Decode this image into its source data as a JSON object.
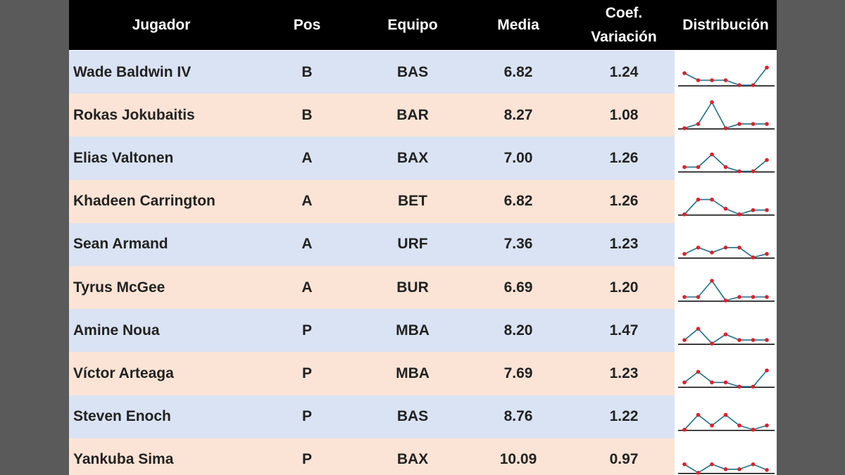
{
  "table": {
    "columns": [
      "Jugador",
      "Pos",
      "Equipo",
      "Media",
      "Coef. Variación",
      "Distribución"
    ],
    "rows": [
      [
        "Wade Baldwin IV",
        "B",
        "BAS",
        "6.82",
        "1.24"
      ],
      [
        "Rokas Jokubaitis",
        "B",
        "BAR",
        "8.27",
        "1.08"
      ],
      [
        "Elias Valtonen",
        "A",
        "BAX",
        "7.00",
        "1.26"
      ],
      [
        "Khadeen Carrington",
        "A",
        "BET",
        "6.82",
        "1.26"
      ],
      [
        "Sean Armand",
        "A",
        "URF",
        "7.36",
        "1.23"
      ],
      [
        "Tyrus McGee",
        "A",
        "BUR",
        "6.69",
        "1.20"
      ],
      [
        "Amine Noua",
        "P",
        "MBA",
        "8.20",
        "1.47"
      ],
      [
        "Víctor Arteaga",
        "P",
        "MBA",
        "7.69",
        "1.23"
      ],
      [
        "Steven Enoch",
        "P",
        "BAS",
        "8.76",
        "1.22"
      ],
      [
        "Yankuba Sima",
        "P",
        "BAX",
        "10.09",
        "0.97"
      ]
    ],
    "sparklines": [
      [
        17,
        7,
        7,
        7,
        0,
        0,
        25
      ],
      [
        0,
        6,
        37,
        0,
        6,
        6,
        6
      ],
      [
        6,
        6,
        24,
        6,
        0,
        0,
        16
      ],
      [
        0,
        21,
        21,
        8,
        0,
        6,
        6
      ],
      [
        5,
        14,
        7,
        14,
        14,
        0,
        5
      ],
      [
        5,
        5,
        28,
        0,
        5,
        5,
        5
      ],
      [
        5,
        21,
        0,
        13,
        5,
        5,
        5
      ],
      [
        6,
        21,
        6,
        6,
        0,
        0,
        23
      ],
      [
        0,
        21,
        6,
        21,
        6,
        0,
        6
      ],
      [
        12,
        0,
        12,
        5,
        5,
        12,
        4
      ]
    ]
  }
}
